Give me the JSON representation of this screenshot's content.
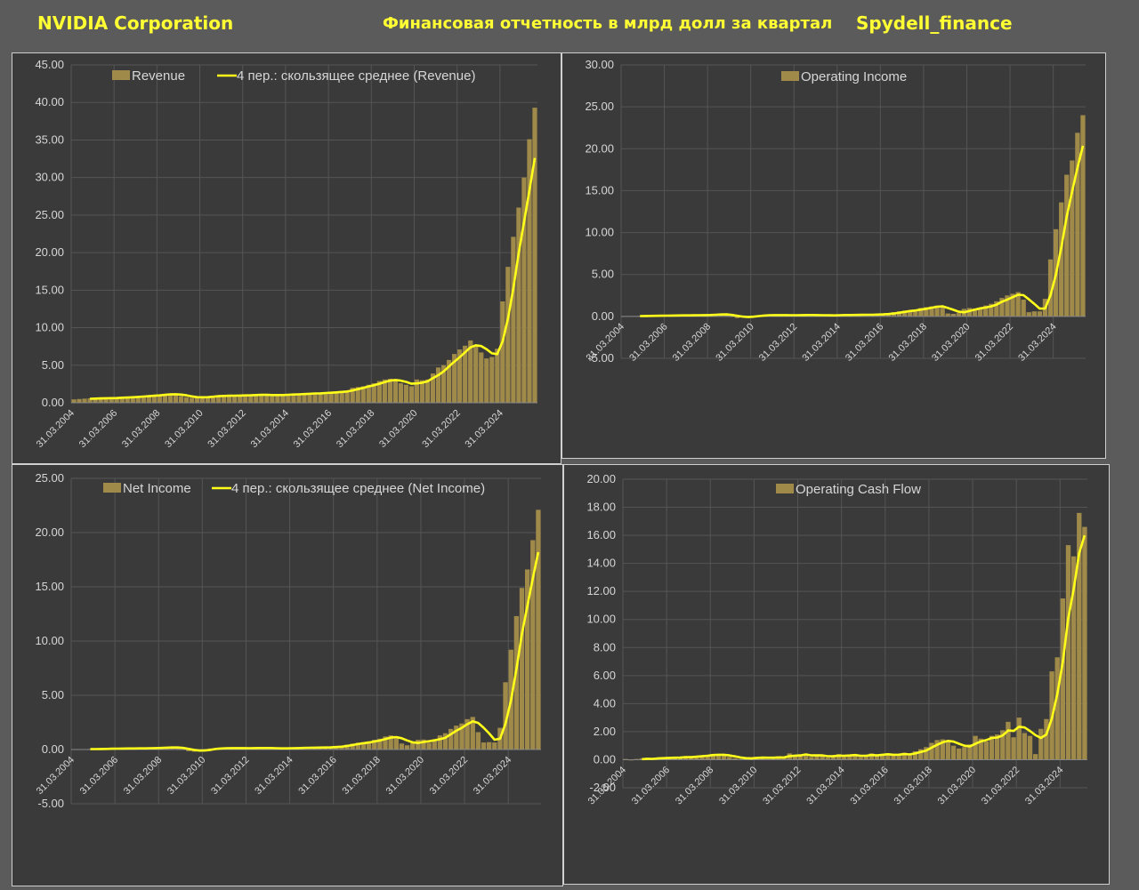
{
  "header": {
    "left": "NVIDIA Corporation",
    "center": "Финансовая отчетность в млрд долл за квартал",
    "right": "Spydell_finance"
  },
  "colors": {
    "bar": "#a08a4a",
    "line": "#ffff1a",
    "grid": "#555555",
    "text": "#d6d6d6"
  },
  "x_tick_labels": [
    "31.03.2004",
    "31.03.2006",
    "31.03.2008",
    "31.03.2010",
    "31.03.2012",
    "31.03.2014",
    "31.03.2016",
    "31.03.2018",
    "31.03.2020",
    "31.03.2022",
    "31.03.2024"
  ],
  "chart_data": [
    {
      "id": "revenue",
      "type": "bar",
      "x_start": "31.03.2004",
      "ylim": [
        0,
        45
      ],
      "yticks": [
        "0.00",
        "5.00",
        "10.00",
        "15.00",
        "20.00",
        "25.00",
        "30.00",
        "35.00",
        "40.00",
        "45.00"
      ],
      "legend": [
        "Revenue",
        "4 пер.: скользящее среднее (Revenue)"
      ],
      "series": [
        {
          "name": "Revenue",
          "values": [
            0.45,
            0.5,
            0.55,
            0.6,
            0.58,
            0.6,
            0.62,
            0.65,
            0.68,
            0.72,
            0.75,
            0.8,
            0.85,
            0.9,
            0.95,
            1.0,
            1.1,
            1.15,
            1.2,
            1.1,
            0.9,
            0.75,
            0.65,
            0.7,
            0.8,
            0.85,
            0.9,
            0.95,
            0.95,
            0.95,
            0.95,
            1.0,
            1.0,
            1.05,
            1.05,
            1.1,
            1.0,
            0.98,
            1.0,
            1.05,
            1.1,
            1.15,
            1.2,
            1.2,
            1.25,
            1.3,
            1.3,
            1.35,
            1.4,
            1.45,
            1.55,
            1.6,
            2.0,
            2.1,
            2.2,
            2.4,
            2.6,
            2.9,
            3.1,
            3.2,
            2.9,
            2.6,
            2.4,
            2.2,
            3.1,
            3.0,
            3.1,
            3.9,
            4.7,
            5.0,
            5.7,
            6.5,
            7.1,
            7.6,
            8.3,
            7.6,
            6.7,
            5.9,
            6.1,
            7.2,
            13.5,
            18.1,
            22.1,
            26.0,
            30.0,
            35.1,
            39.3
          ]
        },
        {
          "name": "4 пер.: скользящее среднее (Revenue)",
          "values": [
            null,
            null,
            null,
            0.53,
            0.56,
            0.58,
            0.6,
            0.61,
            0.63,
            0.67,
            0.7,
            0.74,
            0.78,
            0.83,
            0.88,
            0.93,
            0.98,
            1.05,
            1.11,
            1.14,
            1.09,
            0.99,
            0.85,
            0.75,
            0.73,
            0.75,
            0.81,
            0.88,
            0.91,
            0.94,
            0.95,
            0.96,
            0.98,
            1.0,
            1.03,
            1.05,
            1.05,
            1.03,
            1.03,
            1.03,
            1.06,
            1.1,
            1.13,
            1.16,
            1.2,
            1.24,
            1.26,
            1.3,
            1.34,
            1.38,
            1.44,
            1.5,
            1.65,
            1.81,
            1.98,
            2.18,
            2.33,
            2.53,
            2.75,
            2.95,
            3.03,
            2.95,
            2.78,
            2.53,
            2.58,
            2.68,
            2.85,
            3.28,
            3.68,
            4.18,
            4.83,
            5.48,
            6.08,
            6.73,
            7.38,
            7.65,
            7.55,
            7.13,
            6.58,
            6.48,
            8.2,
            11.23,
            15.23,
            19.93,
            24.05,
            28.3,
            32.6
          ]
        }
      ]
    },
    {
      "id": "operating-income",
      "type": "bar",
      "x_start": "31.03.2004",
      "ylim": [
        -5,
        30
      ],
      "yticks": [
        "-5.00",
        "0.00",
        "5.00",
        "10.00",
        "15.00",
        "20.00",
        "25.00",
        "30.00"
      ],
      "legend": [
        "Operating Income"
      ],
      "series": [
        {
          "name": "Operating Income",
          "values": [
            0.02,
            0.03,
            0.04,
            0.06,
            0.06,
            0.07,
            0.08,
            0.1,
            0.1,
            0.11,
            0.12,
            0.13,
            0.13,
            0.14,
            0.16,
            0.18,
            0.2,
            0.25,
            0.3,
            0.22,
            -0.05,
            -0.2,
            -0.1,
            0.03,
            0.1,
            0.13,
            0.15,
            0.17,
            0.15,
            0.14,
            0.13,
            0.15,
            0.14,
            0.16,
            0.17,
            0.18,
            0.12,
            0.1,
            0.12,
            0.15,
            0.17,
            0.18,
            0.19,
            0.19,
            0.2,
            0.2,
            0.21,
            0.25,
            0.3,
            0.35,
            0.5,
            0.6,
            0.7,
            0.75,
            0.8,
            1.0,
            1.1,
            1.2,
            1.3,
            1.2,
            0.35,
            0.3,
            0.4,
            0.9,
            1.0,
            0.95,
            1.0,
            1.3,
            1.5,
            1.8,
            2.2,
            2.5,
            2.7,
            2.9,
            2.0,
            0.5,
            0.6,
            0.6,
            2.1,
            6.8,
            10.4,
            13.6,
            16.9,
            18.6,
            21.9,
            24.0
          ]
        },
        {
          "name": "trend",
          "values": [
            null,
            null,
            null,
            0.04,
            0.05,
            0.06,
            0.07,
            0.08,
            0.09,
            0.1,
            0.11,
            0.12,
            0.12,
            0.13,
            0.14,
            0.15,
            0.17,
            0.2,
            0.23,
            0.24,
            0.18,
            0.07,
            -0.03,
            -0.08,
            -0.04,
            0.04,
            0.1,
            0.14,
            0.15,
            0.15,
            0.15,
            0.14,
            0.14,
            0.15,
            0.16,
            0.16,
            0.15,
            0.14,
            0.13,
            0.12,
            0.14,
            0.16,
            0.17,
            0.18,
            0.19,
            0.2,
            0.2,
            0.22,
            0.24,
            0.28,
            0.35,
            0.44,
            0.54,
            0.64,
            0.71,
            0.81,
            0.91,
            1.03,
            1.15,
            1.2,
            1.0,
            0.79,
            0.56,
            0.49,
            0.65,
            0.81,
            0.96,
            1.06,
            1.19,
            1.4,
            1.75,
            2.0,
            2.3,
            2.58,
            2.53,
            2.03,
            1.5,
            0.93,
            0.95,
            2.5,
            4.98,
            8.23,
            11.93,
            14.88,
            17.75,
            20.35
          ]
        }
      ]
    },
    {
      "id": "net-income",
      "type": "bar",
      "x_start": "31.03.2004",
      "ylim": [
        -5,
        25
      ],
      "yticks": [
        "-5.00",
        "0.00",
        "5.00",
        "10.00",
        "15.00",
        "20.00",
        "25.00"
      ],
      "legend": [
        "Net Income",
        "4 пер.: скользящее среднее (Net Income)"
      ],
      "series": [
        {
          "name": "Net Income",
          "values": [
            0.02,
            0.03,
            0.04,
            0.05,
            0.05,
            0.06,
            0.07,
            0.09,
            0.09,
            0.1,
            0.1,
            0.11,
            0.11,
            0.12,
            0.14,
            0.16,
            0.18,
            0.2,
            0.22,
            0.18,
            0.0,
            -0.15,
            -0.2,
            -0.05,
            0.05,
            0.1,
            0.12,
            0.13,
            0.13,
            0.12,
            0.12,
            0.13,
            0.12,
            0.14,
            0.15,
            0.15,
            0.1,
            0.09,
            0.1,
            0.13,
            0.14,
            0.15,
            0.16,
            0.17,
            0.18,
            0.19,
            0.2,
            0.24,
            0.28,
            0.33,
            0.46,
            0.55,
            0.64,
            0.68,
            0.75,
            0.9,
            1.0,
            1.2,
            1.3,
            1.1,
            0.55,
            0.39,
            0.6,
            0.9,
            0.92,
            0.62,
            0.95,
            1.3,
            1.5,
            1.9,
            2.2,
            2.4,
            2.8,
            3.0,
            1.6,
            0.65,
            0.68,
            0.65,
            2.0,
            6.2,
            9.2,
            12.3,
            14.9,
            16.6,
            19.3,
            22.1
          ]
        },
        {
          "name": "4 пер.: скользящее среднее (Net Income)",
          "values": [
            null,
            null,
            null,
            0.04,
            0.04,
            0.05,
            0.06,
            0.07,
            0.08,
            0.09,
            0.1,
            0.1,
            0.11,
            0.11,
            0.12,
            0.13,
            0.15,
            0.17,
            0.19,
            0.19,
            0.15,
            0.06,
            -0.03,
            -0.1,
            -0.09,
            -0.03,
            0.06,
            0.1,
            0.12,
            0.13,
            0.13,
            0.13,
            0.12,
            0.13,
            0.14,
            0.14,
            0.14,
            0.12,
            0.11,
            0.11,
            0.12,
            0.13,
            0.15,
            0.16,
            0.17,
            0.18,
            0.19,
            0.2,
            0.23,
            0.26,
            0.33,
            0.41,
            0.5,
            0.58,
            0.65,
            0.74,
            0.83,
            0.96,
            1.1,
            1.15,
            1.04,
            0.84,
            0.66,
            0.61,
            0.7,
            0.76,
            0.85,
            0.95,
            1.09,
            1.41,
            1.73,
            2.0,
            2.33,
            2.6,
            2.45,
            2.01,
            1.48,
            0.9,
            1.0,
            2.39,
            4.51,
            7.43,
            10.65,
            13.25,
            15.78,
            18.2
          ]
        }
      ]
    },
    {
      "id": "operating-cash-flow",
      "type": "bar",
      "x_start": "31.03.2004",
      "ylim": [
        -2,
        20
      ],
      "yticks": [
        "-2.00",
        "0.00",
        "2.00",
        "4.00",
        "6.00",
        "8.00",
        "10.00",
        "12.00",
        "14.00",
        "16.00",
        "18.00",
        "20.00"
      ],
      "legend": [
        "Operating Cash Flow"
      ],
      "series": [
        {
          "name": "Operating Cash Flow",
          "values": [
            0.05,
            -0.05,
            0.05,
            0.1,
            0.15,
            0.05,
            0.1,
            0.15,
            0.2,
            0.1,
            0.15,
            0.25,
            0.2,
            0.25,
            0.3,
            0.35,
            0.4,
            0.35,
            0.3,
            0.2,
            0.1,
            0.05,
            0.1,
            0.15,
            0.2,
            0.15,
            0.05,
            0.2,
            0.25,
            0.15,
            0.45,
            0.3,
            0.35,
            0.4,
            0.2,
            0.3,
            0.35,
            0.15,
            0.25,
            0.4,
            0.3,
            0.25,
            0.35,
            0.2,
            0.3,
            0.45,
            0.3,
            0.35,
            0.45,
            0.3,
            0.35,
            0.5,
            0.35,
            0.6,
            0.75,
            0.9,
            1.2,
            1.4,
            1.45,
            1.3,
            1.0,
            0.8,
            0.9,
            1.1,
            1.7,
            1.5,
            1.3,
            1.7,
            1.8,
            2.1,
            2.7,
            1.6,
            3.0,
            1.9,
            1.7,
            0.4,
            2.2,
            2.9,
            6.3,
            7.3,
            11.5,
            15.3,
            14.5,
            17.6,
            16.6
          ]
        },
        {
          "name": "trend",
          "values": [
            null,
            null,
            null,
            0.04,
            0.06,
            0.06,
            0.1,
            0.11,
            0.13,
            0.14,
            0.15,
            0.18,
            0.18,
            0.21,
            0.25,
            0.28,
            0.33,
            0.35,
            0.35,
            0.31,
            0.24,
            0.16,
            0.11,
            0.1,
            0.13,
            0.15,
            0.14,
            0.14,
            0.16,
            0.16,
            0.26,
            0.29,
            0.31,
            0.38,
            0.31,
            0.31,
            0.31,
            0.25,
            0.26,
            0.29,
            0.28,
            0.3,
            0.33,
            0.28,
            0.28,
            0.33,
            0.31,
            0.35,
            0.39,
            0.35,
            0.36,
            0.4,
            0.38,
            0.45,
            0.55,
            0.65,
            0.86,
            1.06,
            1.24,
            1.34,
            1.29,
            1.14,
            1.0,
            0.95,
            1.13,
            1.3,
            1.4,
            1.55,
            1.58,
            1.73,
            2.08,
            2.05,
            2.35,
            2.3,
            2.05,
            1.75,
            1.55,
            1.8,
            2.95,
            4.68,
            6.98,
            10.1,
            12.15,
            14.73,
            16.0
          ]
        }
      ]
    }
  ]
}
